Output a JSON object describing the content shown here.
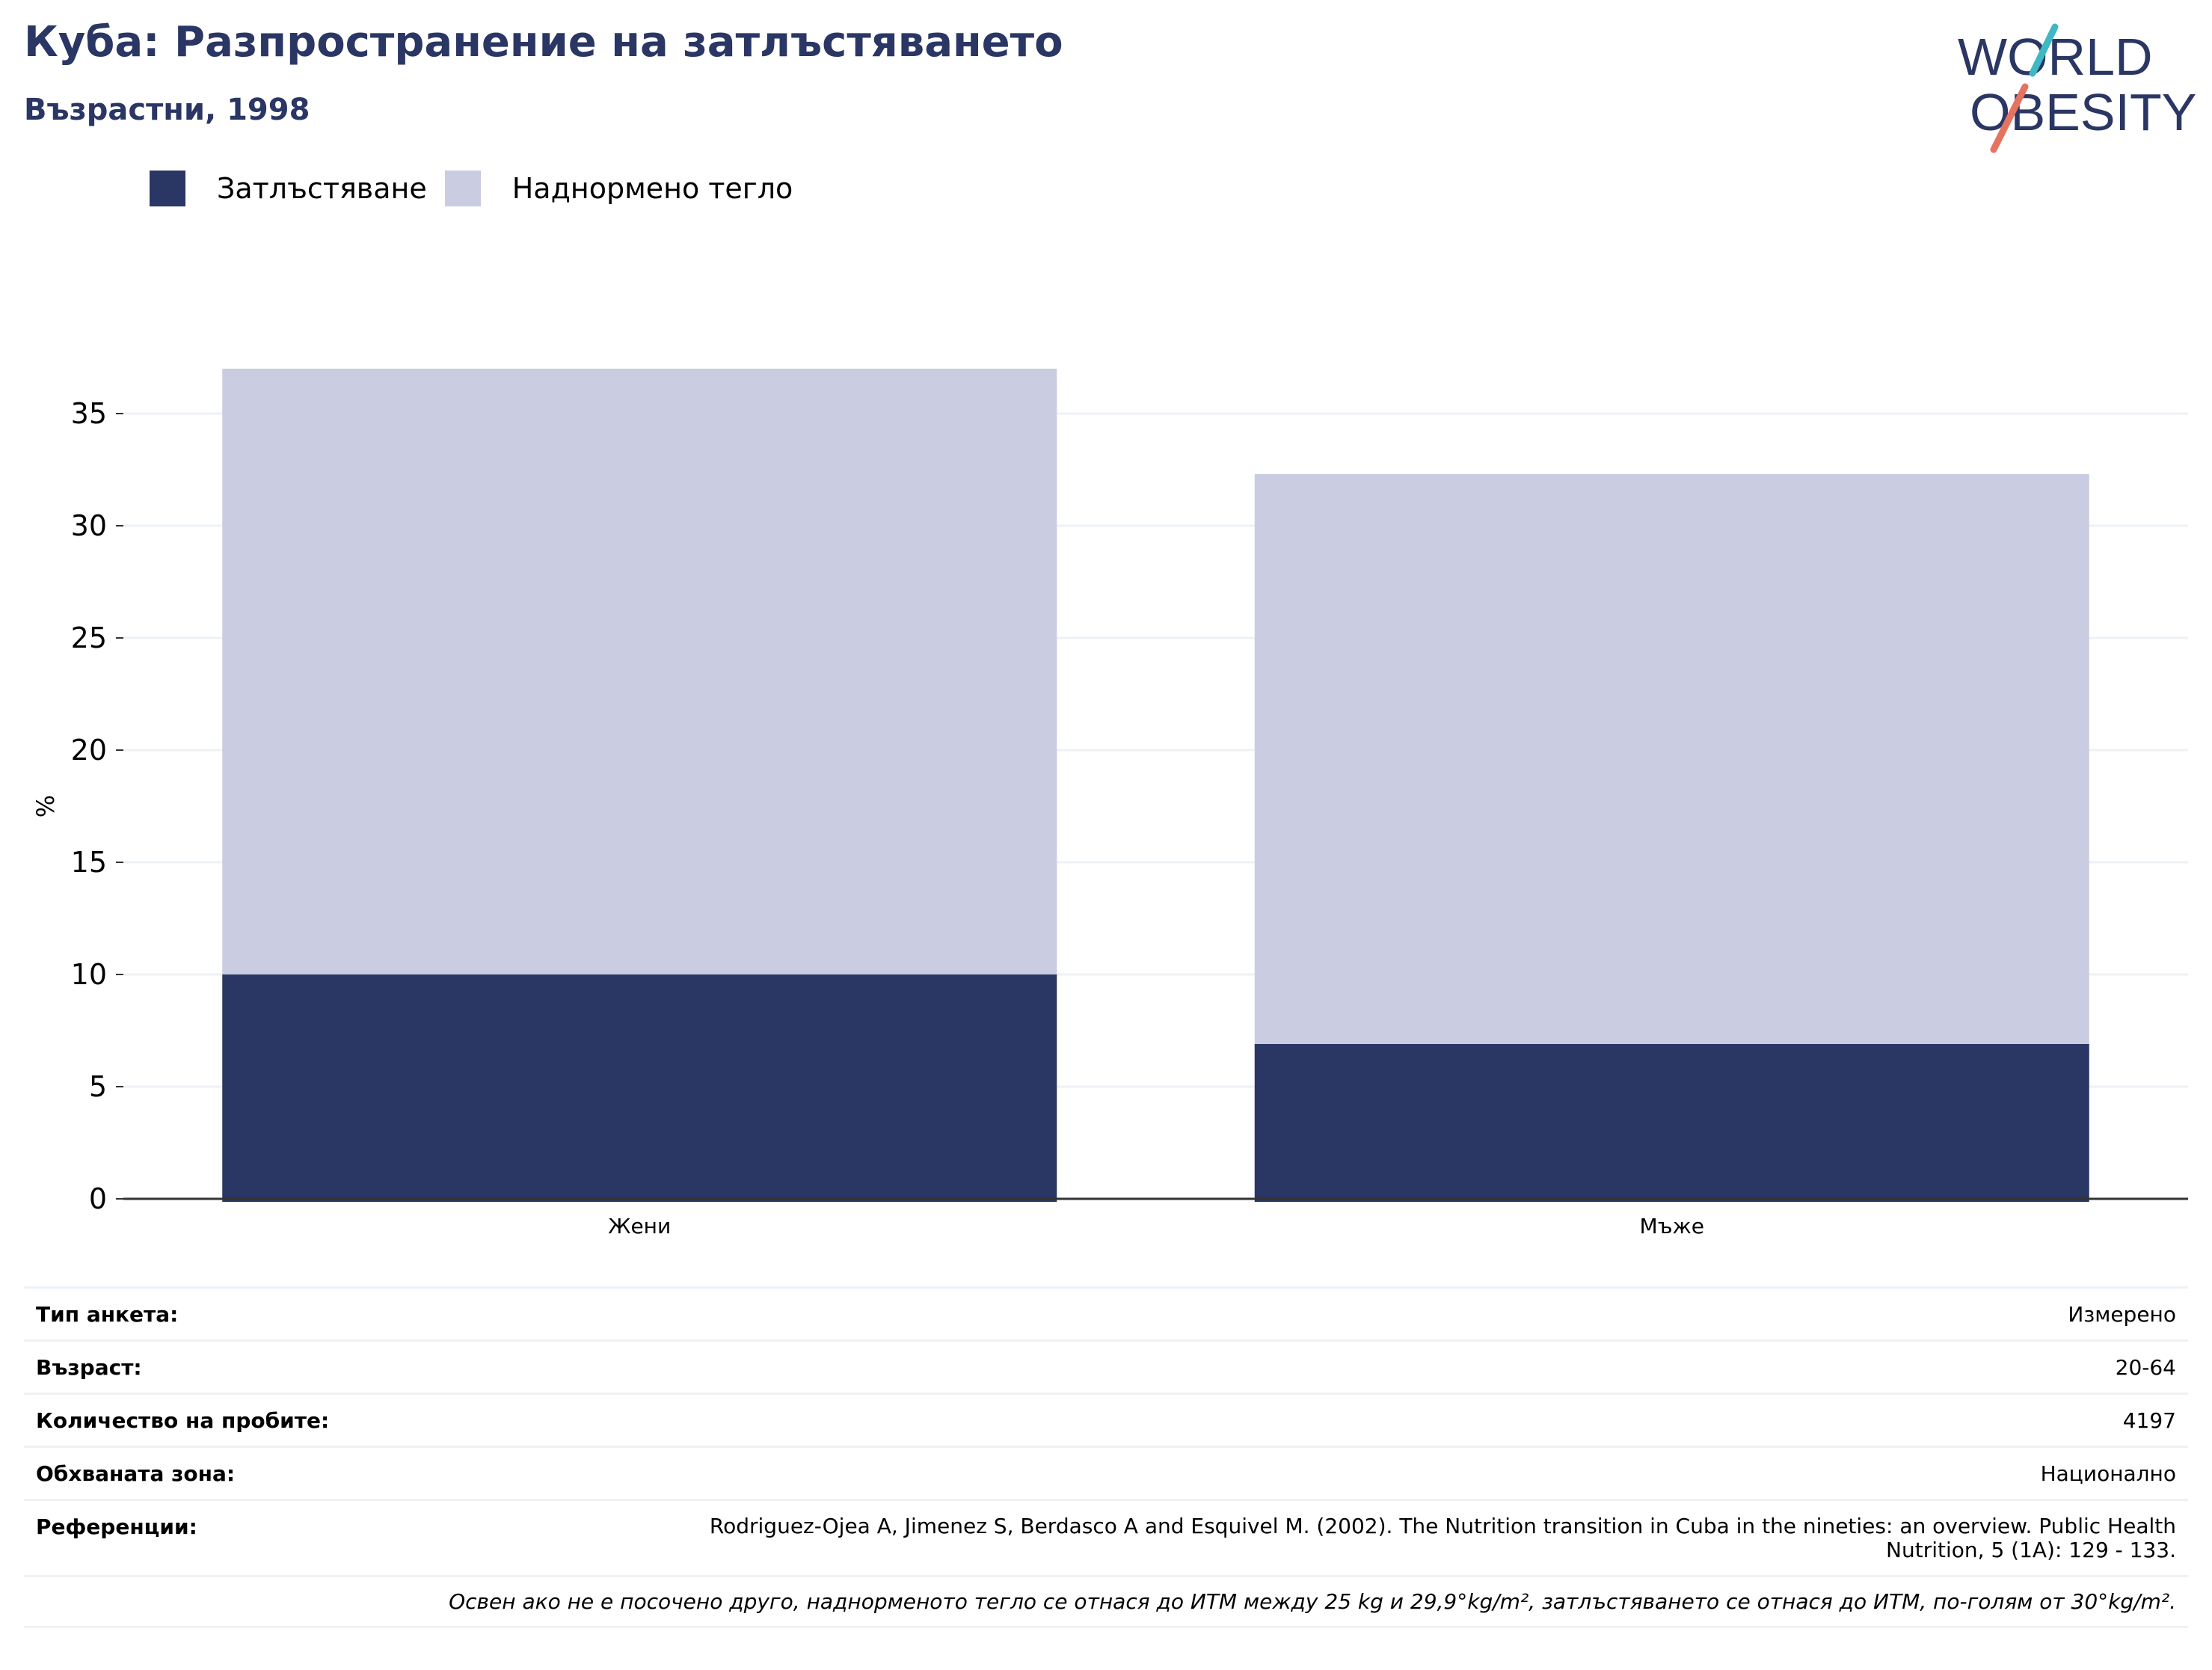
{
  "header": {
    "title": "Куба: Разпространение на затлъстяването",
    "subtitle": "Възрастни, 1998"
  },
  "logo": {
    "line1": "WORLD",
    "line2": "OBESITY"
  },
  "colors": {
    "obesity": "#2a3664",
    "overweight": "#cacce1",
    "title": "#2a3664",
    "grid": "#eef2f5"
  },
  "legend": [
    {
      "label": "Затлъстяване",
      "color": "#2a3664"
    },
    {
      "label": "Наднормено тегло",
      "color": "#cacce1"
    }
  ],
  "chart_data": {
    "type": "bar",
    "stacked": true,
    "categories": [
      "Жени",
      "Мъже"
    ],
    "series": [
      {
        "name": "Затлъстяване",
        "values": [
          10.0,
          6.9
        ]
      },
      {
        "name": "Наднормено тегло",
        "values": [
          27.0,
          25.4
        ]
      }
    ],
    "ylabel": "%",
    "ylim": [
      0,
      37
    ],
    "yticks": [
      0,
      5,
      10,
      15,
      20,
      25,
      30,
      35
    ],
    "grid": true,
    "legend_position": "top-left"
  },
  "info": {
    "survey_type": {
      "label": "Тип анкета:",
      "value": "Измерено"
    },
    "age": {
      "label": "Възраст:",
      "value": "20-64"
    },
    "sample_size": {
      "label": "Количество на пробите:",
      "value": "4197"
    },
    "area": {
      "label": "Обхваната зона:",
      "value": "Национално"
    },
    "references": {
      "label": "Референции:",
      "value": "Rodriguez-Ojea A, Jimenez S, Berdasco A and Esquivel M. (2002). The Nutrition transition in Cuba in the nineties: an overview. Public Health Nutrition, 5 (1A): 129 - 133."
    },
    "note": "Освен ако не е посочено друго, наднорменото тегло се отнася до ИТМ между 25 kg и 29,9°kg/m², затлъстяването се отнася до ИТМ, по-голям от 30°kg/m²."
  }
}
